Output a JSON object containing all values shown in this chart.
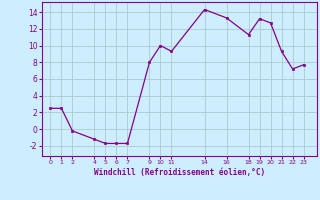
{
  "x": [
    0,
    1,
    2,
    4,
    5,
    6,
    7,
    9,
    10,
    11,
    14,
    16,
    18,
    19,
    20,
    21,
    22,
    23
  ],
  "y": [
    2.5,
    2.5,
    -0.2,
    -1.2,
    -1.7,
    -1.7,
    -1.7,
    8.0,
    10.0,
    9.3,
    14.3,
    13.3,
    11.3,
    13.2,
    12.7,
    9.3,
    7.2,
    7.7
  ],
  "line_color": "#880088",
  "marker_color": "#880088",
  "bg_color": "#cceeff",
  "grid_color": "#aacccc",
  "xlabel": "Windchill (Refroidissement éolien,°C)",
  "xticks": [
    0,
    1,
    2,
    4,
    5,
    6,
    7,
    9,
    10,
    11,
    14,
    16,
    18,
    19,
    20,
    21,
    22,
    23
  ],
  "yticks": [
    -2,
    0,
    2,
    4,
    6,
    8,
    10,
    12,
    14
  ],
  "ylim": [
    -3.2,
    15.2
  ],
  "xlim": [
    -0.8,
    24.2
  ]
}
